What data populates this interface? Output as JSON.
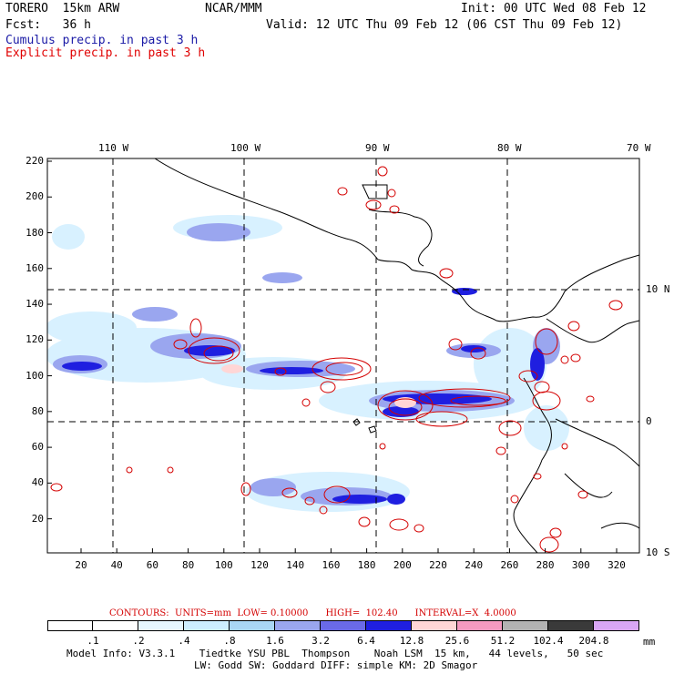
{
  "header": {
    "model": "TORERO  15km ARW",
    "org": "NCAR/MMM",
    "init": "Init: 00 UTC Wed 08 Feb 12",
    "fcst": "Fcst:   36 h",
    "valid": "Valid: 12 UTC Thu 09 Feb 12 (06 CST Thu 09 Feb 12)",
    "cumulus": "Cumulus precip. in past 3 h",
    "explicit": "Explicit precip. in past 3 h",
    "cumulus_color": "#1a1aa6",
    "explicit_color": "#e00000"
  },
  "axes": {
    "lon_labels": [
      "110 W",
      "100 W",
      "90 W",
      "80 W",
      "70 W"
    ],
    "lat_labels": [
      "10 N",
      "0",
      "10 S"
    ],
    "y_ticks": [
      "220",
      "200",
      "180",
      "160",
      "140",
      "120",
      "100",
      "80",
      "60",
      "40",
      "20"
    ],
    "x_ticks": [
      "20",
      "40",
      "60",
      "80",
      "100",
      "120",
      "140",
      "160",
      "180",
      "200",
      "220",
      "240",
      "260",
      "280",
      "300",
      "320"
    ]
  },
  "contours": {
    "text": "CONTOURS:  UNITS=mm  LOW= 0.10000      HIGH=  102.40      INTERVAL=X  4.0000",
    "units": "mm",
    "low": 0.1,
    "high": 102.4,
    "interval": "X 4.0000",
    "color": "#d40000"
  },
  "legend": {
    "unit": "mm",
    "labels": [
      ".1",
      ".2",
      ".4",
      ".8",
      "1.6",
      "3.2",
      "6.4",
      "12.8",
      "25.6",
      "51.2",
      "102.4",
      "204.8"
    ],
    "colors": [
      "#ffffff",
      "#ffffff",
      "#e6f7ff",
      "#cdeeff",
      "#a9d6f5",
      "#9aa6ef",
      "#6a6ae8",
      "#1f1fe0",
      "#ffd6d6",
      "#f59ac0",
      "#b3b3b3",
      "#3a3a3a",
      "#d9a6f5"
    ]
  },
  "footer": {
    "line1": "Model Info: V3.3.1    Tiedtke YSU PBL  Thompson    Noah LSM  15 km,   44 levels,   50 sec",
    "line2": "LW: Godd SW: Goddard DIFF: simple KM: 2D Smagor"
  }
}
